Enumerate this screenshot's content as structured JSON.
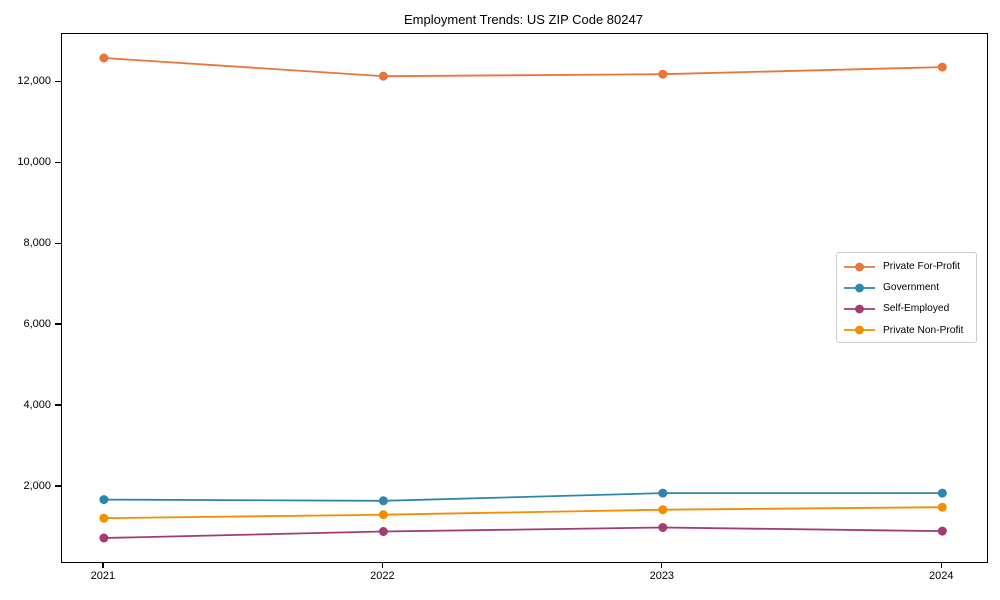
{
  "title": "Employment Trends: US ZIP Code 80247",
  "chart_data": {
    "type": "line",
    "title": "Employment Trends: US ZIP Code 80247",
    "categories": [
      2021,
      2022,
      2023,
      2024
    ],
    "series": [
      {
        "name": "Private For-Profit",
        "color": "#E8763C",
        "values": [
          12600,
          12150,
          12200,
          12375
        ]
      },
      {
        "name": "Government",
        "color": "#2E86AB",
        "values": [
          1690,
          1660,
          1850,
          1850
        ]
      },
      {
        "name": "Self-Employed",
        "color": "#A23B72",
        "values": [
          740,
          900,
          1000,
          910
        ]
      },
      {
        "name": "Private Non-Profit",
        "color": "#F18F01",
        "values": [
          1230,
          1315,
          1440,
          1500
        ]
      }
    ],
    "xlabel": "",
    "ylabel": "",
    "xlim": [
      2020.85,
      2024.16
    ],
    "ylim": [
      147,
      13193
    ],
    "yticks": [
      2000,
      4000,
      6000,
      8000,
      10000,
      12000
    ],
    "ytick_labels": [
      "2,000",
      "4,000",
      "6,000",
      "8,000",
      "10,000",
      "12,000"
    ],
    "xtick_labels": [
      "2021",
      "2022",
      "2023",
      "2024"
    ],
    "grid": false,
    "legend_position": "center-right",
    "marker": "circle",
    "marker_radius": 4.5,
    "line_width": 1.8,
    "spine_color": "#000000",
    "legend_border_color": "#cccccc"
  }
}
